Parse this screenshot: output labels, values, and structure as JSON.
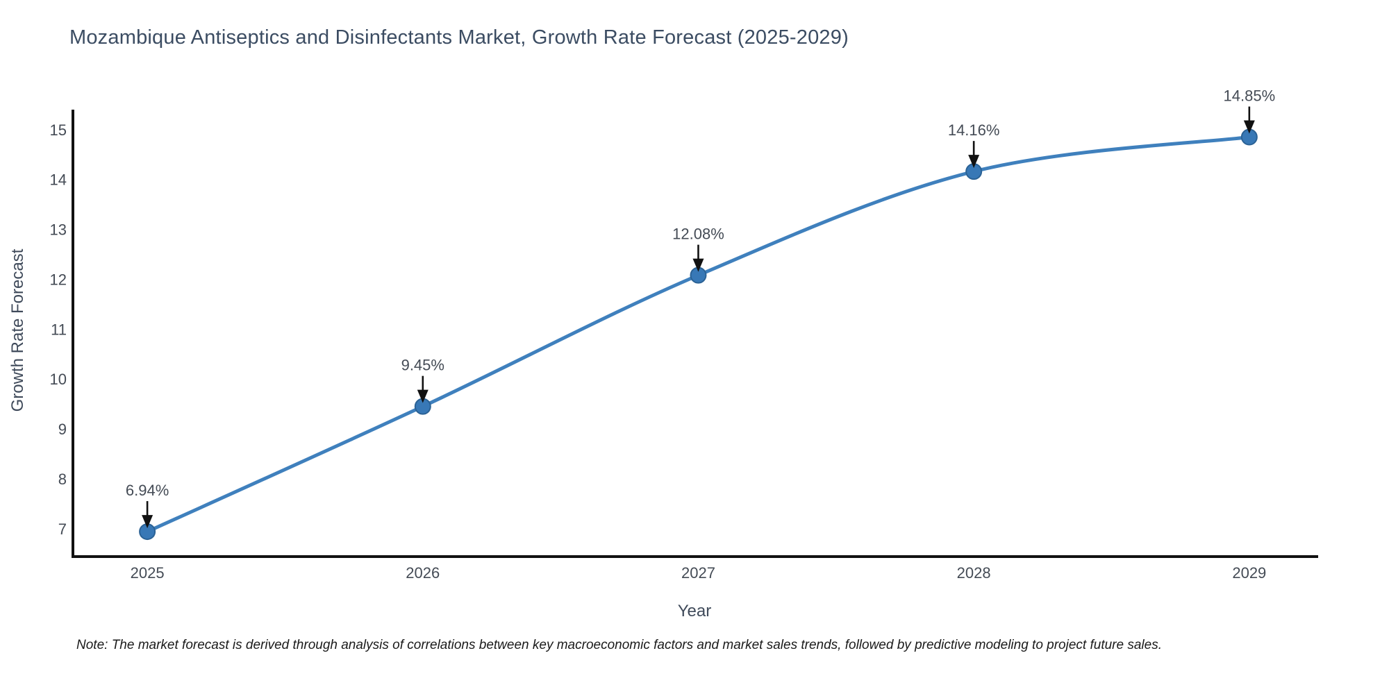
{
  "title": "Mozambique Antiseptics and Disinfectants Market, Growth Rate Forecast (2025-2029)",
  "footnote": "Note: The market forecast is derived through analysis of correlations between key macroeconomic factors and market sales trends, followed by predictive modeling to project future sales.",
  "chart_data": {
    "type": "line",
    "title": "Mozambique Antiseptics and Disinfectants Market, Growth Rate Forecast (2025-2029)",
    "xlabel": "Year",
    "ylabel": "Growth Rate Forecast",
    "x": [
      2025,
      2026,
      2027,
      2028,
      2029
    ],
    "y": [
      6.94,
      9.45,
      12.08,
      14.16,
      14.85
    ],
    "point_labels": [
      "6.94%",
      "9.45%",
      "12.08%",
      "14.16%",
      "14.85%"
    ],
    "yticks": [
      7,
      8,
      9,
      10,
      11,
      12,
      13,
      14,
      15
    ],
    "xticks": [
      2025,
      2026,
      2027,
      2028,
      2029
    ],
    "ylim": [
      6.44,
      15.4
    ],
    "xlim": [
      2024.73,
      2029.25
    ],
    "grid": false,
    "legend": null,
    "line_shape": "spline",
    "colors": {
      "line": "#3f80bd",
      "marker_fill": "#3878b6",
      "marker_stroke": "#2b6295",
      "axis": "#111111",
      "annotation_arrow": "#111111",
      "tick_text": "#444b55",
      "title_text": "#3b4c62",
      "axis_title_text": "#3f4a5a",
      "note_text": "#1a1a1a"
    }
  }
}
